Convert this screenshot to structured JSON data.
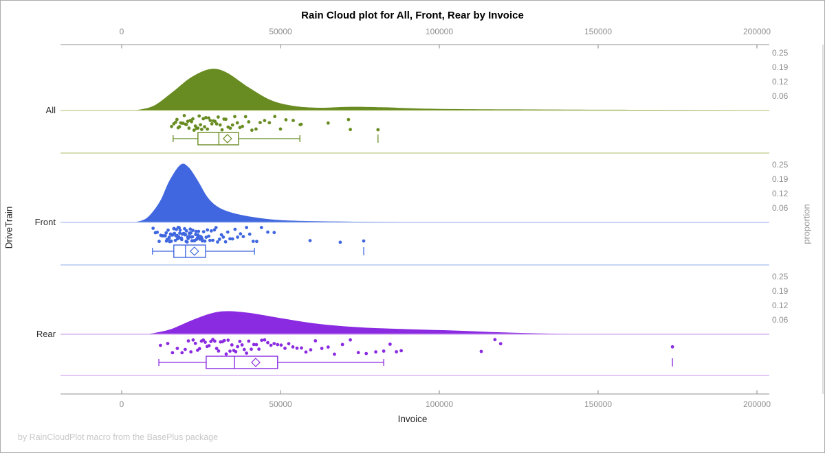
{
  "title": "Rain Cloud plot for All, Front, Rear by Invoice",
  "footer": "by RainCloudPlot macro from the BasePlus package",
  "axes": {
    "x": {
      "label": "Invoice",
      "tick_values": [
        0,
        50000,
        100000,
        150000,
        200000
      ],
      "tick_labels": [
        "0",
        "50000",
        "100000",
        "150000",
        "200000"
      ],
      "range": [
        -19000,
        204000
      ]
    },
    "y_left": {
      "label": "DriveTrain",
      "categories": [
        "All",
        "Front",
        "Rear"
      ]
    },
    "y_right": {
      "label": "proportion",
      "tick_labels": [
        "0.25",
        "0.19",
        "0.12",
        "0.06"
      ],
      "tick_values": [
        0.25,
        0.1875,
        0.125,
        0.0625
      ]
    }
  },
  "colors": {
    "axis_line": "#a8a8a8",
    "tick_mark": "#9a9a9a",
    "tick_text": "#8c8c8c",
    "category_text": "#2e2e2e",
    "right_frame": "#c4c4c4"
  },
  "chart_data": {
    "type": "raincloud",
    "title": "Rain Cloud plot for All, Front, Rear by Invoice",
    "xlabel": "Invoice",
    "ylabel_left": "DriveTrain",
    "ylabel_right": "proportion",
    "xlim": [
      -19000,
      204000
    ],
    "proportion_ticks": [
      0.0625,
      0.125,
      0.1875,
      0.25
    ],
    "groups": [
      {
        "name": "All",
        "color": "#688C21",
        "light": "#c8d49c",
        "density": [
          [
            4000,
            0
          ],
          [
            10000,
            0.02
          ],
          [
            16000,
            0.08
          ],
          [
            22000,
            0.145
          ],
          [
            28000,
            0.18
          ],
          [
            33000,
            0.165
          ],
          [
            40000,
            0.1
          ],
          [
            47000,
            0.045
          ],
          [
            54000,
            0.02
          ],
          [
            62000,
            0.012
          ],
          [
            72000,
            0.016
          ],
          [
            82000,
            0.014
          ],
          [
            95000,
            0.008
          ],
          [
            115000,
            0.005
          ],
          [
            140000,
            0.004
          ],
          [
            165000,
            0.003
          ],
          [
            185000,
            0.002
          ],
          [
            200000,
            0.001
          ]
        ],
        "box": {
          "whisker_low": 16200,
          "q1": 24000,
          "median": 30600,
          "q3": 36800,
          "whisker_high": 56100,
          "mean": 33300,
          "outliers": [
            80700
          ]
        },
        "rain": [
          15700,
          16400,
          17000,
          17400,
          17800,
          18200,
          18600,
          19000,
          19300,
          19700,
          20100,
          20400,
          20800,
          21200,
          21600,
          22000,
          22400,
          22800,
          23200,
          23600,
          24000,
          24400,
          24800,
          25200,
          25700,
          26100,
          26500,
          27000,
          27400,
          27900,
          28400,
          28900,
          29400,
          29900,
          30400,
          31000,
          31600,
          32200,
          32800,
          33500,
          34200,
          34900,
          35600,
          36400,
          37200,
          38000,
          39000,
          40000,
          41000,
          42300,
          43600,
          45000,
          46500,
          48200,
          50000,
          51700,
          54000,
          56200,
          56500,
          65000,
          71400,
          72000,
          80700
        ]
      },
      {
        "name": "Front",
        "color": "#4067DF",
        "light": "#b7c8f0",
        "density": [
          [
            4000,
            0
          ],
          [
            8000,
            0.02
          ],
          [
            12000,
            0.09
          ],
          [
            15000,
            0.18
          ],
          [
            18500,
            0.25
          ],
          [
            21000,
            0.24
          ],
          [
            24000,
            0.18
          ],
          [
            27000,
            0.11
          ],
          [
            30000,
            0.07
          ],
          [
            34000,
            0.045
          ],
          [
            40000,
            0.026
          ],
          [
            48000,
            0.012
          ],
          [
            58000,
            0.006
          ],
          [
            75000,
            0.003
          ],
          [
            95000,
            0.001
          ],
          [
            110000,
            0
          ]
        ],
        "box": {
          "whisker_low": 9700,
          "q1": 16400,
          "median": 20100,
          "q3": 26400,
          "whisker_high": 41800,
          "mean": 22900,
          "outliers": [
            76200
          ]
        },
        "rain": [
          9900,
          10600,
          11200,
          11800,
          12300,
          12700,
          13100,
          13400,
          13700,
          14000,
          14100,
          14300,
          14600,
          14900,
          15000,
          15100,
          15400,
          15600,
          15800,
          15900,
          16100,
          16400,
          16500,
          16600,
          16900,
          17100,
          17200,
          17400,
          17600,
          17800,
          17900,
          18100,
          18300,
          18400,
          18600,
          18800,
          18900,
          19100,
          19300,
          19400,
          19600,
          19800,
          19900,
          20100,
          20300,
          20400,
          20600,
          20800,
          20900,
          21100,
          21300,
          21400,
          21600,
          21800,
          21900,
          22100,
          22300,
          22400,
          22700,
          22900,
          23000,
          23300,
          23400,
          23600,
          23900,
          24000,
          24200,
          24500,
          24600,
          24800,
          25100,
          25300,
          25400,
          25800,
          26200,
          26600,
          27000,
          27400,
          27800,
          28200,
          28700,
          29200,
          29700,
          30200,
          30800,
          31400,
          32000,
          32700,
          33400,
          34100,
          34900,
          35700,
          36500,
          37400,
          38300,
          39300,
          40300,
          41400,
          42500,
          44000,
          46000,
          48000,
          59300,
          68800,
          76200
        ]
      },
      {
        "name": "Rear",
        "color": "#8B2BE1",
        "light": "#d8b5f2",
        "density": [
          [
            8000,
            0
          ],
          [
            15000,
            0.02
          ],
          [
            22000,
            0.06
          ],
          [
            28000,
            0.09
          ],
          [
            33000,
            0.1
          ],
          [
            40000,
            0.093
          ],
          [
            50000,
            0.07
          ],
          [
            62000,
            0.045
          ],
          [
            75000,
            0.03
          ],
          [
            90000,
            0.022
          ],
          [
            105000,
            0.016
          ],
          [
            120000,
            0.008
          ],
          [
            135000,
            0.003
          ],
          [
            150000,
            0.001
          ],
          [
            200000,
            0
          ]
        ],
        "box": {
          "whisker_low": 11700,
          "q1": 26600,
          "median": 35500,
          "q3": 49100,
          "whisker_high": 82500,
          "mean": 42200,
          "outliers": [
            173400
          ]
        },
        "rain": [
          12200,
          14500,
          16000,
          17500,
          19000,
          20000,
          21000,
          21800,
          22500,
          23200,
          23900,
          24500,
          25100,
          25700,
          26300,
          26900,
          27500,
          28100,
          28700,
          29300,
          29900,
          30500,
          31100,
          31700,
          32300,
          32900,
          33500,
          34100,
          34700,
          35300,
          35900,
          36500,
          37200,
          37900,
          38600,
          39300,
          40000,
          40800,
          41600,
          42400,
          43200,
          44100,
          45000,
          46000,
          47000,
          48000,
          49100,
          50200,
          51400,
          52600,
          53900,
          55200,
          56600,
          58000,
          59500,
          61000,
          63000,
          65000,
          67000,
          69500,
          72000,
          74500,
          77000,
          80000,
          82500,
          84500,
          86500,
          88000,
          113200,
          117500,
          119300,
          173400
        ]
      }
    ]
  }
}
